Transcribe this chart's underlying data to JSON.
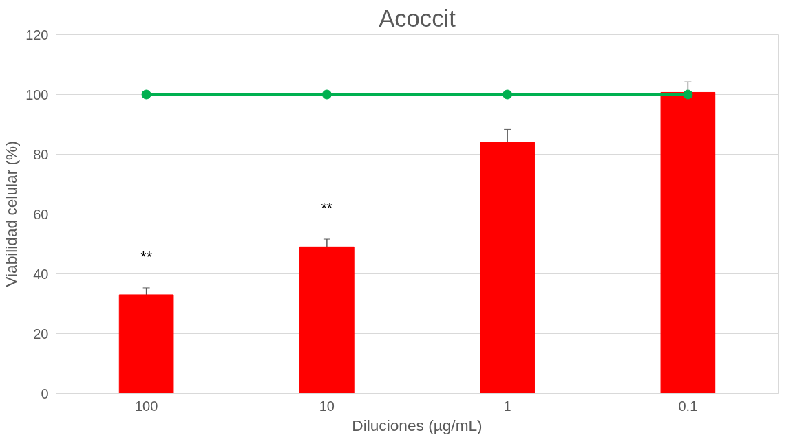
{
  "chart_data": {
    "type": "bar",
    "title": "Acoccit",
    "xlabel": "Diluciones (µg/mL)",
    "ylabel": "Viabilidad celular (%)",
    "categories": [
      "100",
      "10",
      "1",
      "0.1"
    ],
    "series": [
      {
        "color": "#ff0000",
        "values": [
          33,
          49,
          84,
          100.7
        ],
        "errors": [
          2.3,
          2.6,
          4.3,
          3.5
        ]
      },
      {
        "type": "line",
        "color": "#00b050",
        "values": [
          100,
          100,
          100,
          100
        ],
        "marker": "circle",
        "line_style": "solid"
      }
    ],
    "annotations": [
      "**",
      "**"
    ],
    "ylim": [
      0,
      120
    ],
    "yticks": [
      0,
      20,
      40,
      60,
      80,
      100,
      120
    ],
    "grid": "y"
  }
}
